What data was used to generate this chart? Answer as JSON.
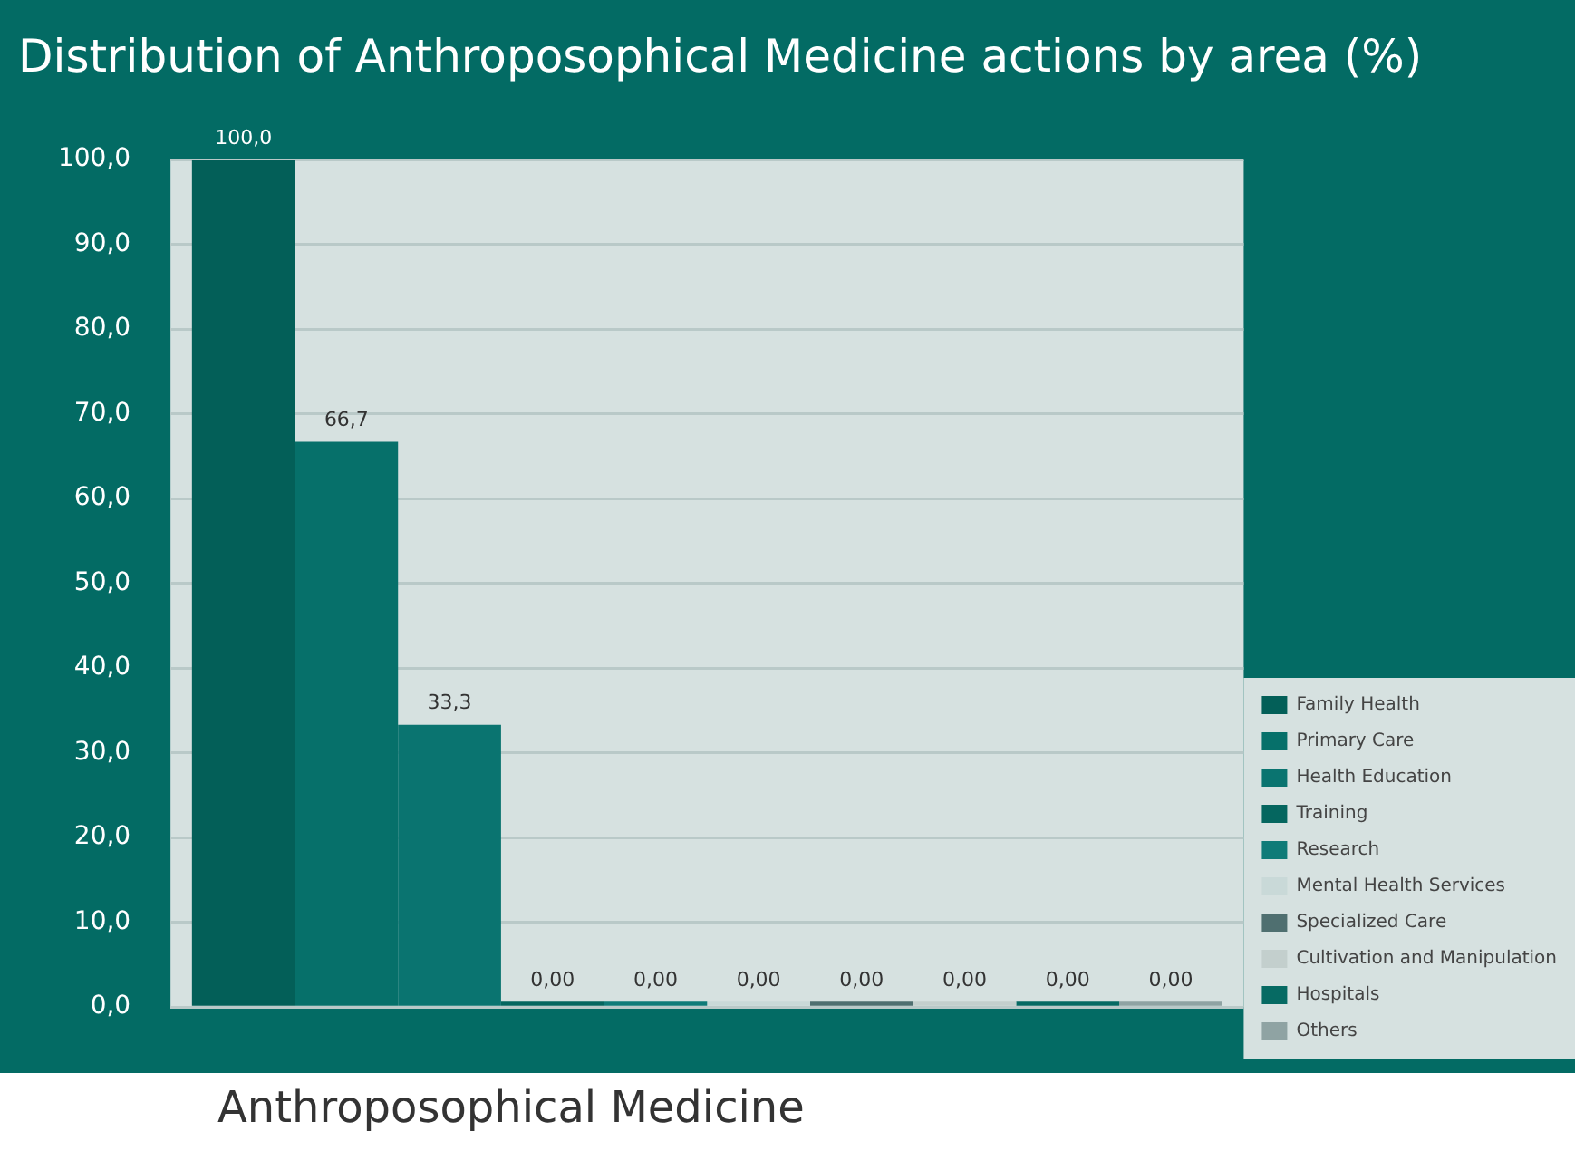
{
  "chart_data": {
    "type": "bar",
    "title": "Distribution of Anthroposophical Medicine actions by area (%)",
    "categories": [
      null
    ],
    "series": [
      {
        "name": "Family Health",
        "color": "#035f58",
        "values": [
          100.0
        ],
        "value_labels": [
          "100,0"
        ]
      },
      {
        "name": "Primary Care",
        "color": "#06706a",
        "values": [
          66.7
        ],
        "value_labels": [
          "66,7"
        ]
      },
      {
        "name": "Health Education",
        "color": "#0a7470",
        "values": [
          33.3
        ],
        "value_labels": [
          "33,3"
        ]
      },
      {
        "name": "Training",
        "color": "#05665f",
        "values": [
          0
        ],
        "value_labels": [
          "0,00"
        ]
      },
      {
        "name": "Research",
        "color": "#0f7b78",
        "values": [
          0
        ],
        "value_labels": [
          "0,00"
        ]
      },
      {
        "name": "Mental Health Services",
        "color": "#c9d9d8",
        "values": [
          0
        ],
        "value_labels": [
          "0,00"
        ]
      },
      {
        "name": "Specialized Care",
        "color": "#4f6f70",
        "values": [
          0
        ],
        "value_labels": [
          "0,00"
        ]
      },
      {
        "name": "Cultivation and Manipulation",
        "color": "#c3cfcd",
        "values": [
          0
        ],
        "value_labels": [
          "0,00"
        ]
      },
      {
        "name": "Hospitals",
        "color": "#066a63",
        "values": [
          0
        ],
        "value_labels": [
          "0,00"
        ]
      },
      {
        "name": "Others",
        "color": "#8fa3a3",
        "values": [
          0
        ],
        "value_labels": [
          "0,00"
        ]
      }
    ],
    "ylim": [
      0,
      100
    ],
    "yticks": [
      {
        "value": 0,
        "label": "0,0"
      },
      {
        "value": 10,
        "label": "10,0"
      },
      {
        "value": 20,
        "label": "20,0"
      },
      {
        "value": 30,
        "label": "30,0"
      },
      {
        "value": 40,
        "label": "40,0"
      },
      {
        "value": 50,
        "label": "50,0"
      },
      {
        "value": 60,
        "label": "60,0"
      },
      {
        "value": 70,
        "label": "70,0"
      },
      {
        "value": 80,
        "label": "80,0"
      },
      {
        "value": 90,
        "label": "90,0"
      },
      {
        "value": 100,
        "label": "100,0"
      }
    ],
    "grid": "y",
    "legend": "bottom right",
    "annotations": [
      "Anthroposophical Medicine"
    ]
  }
}
